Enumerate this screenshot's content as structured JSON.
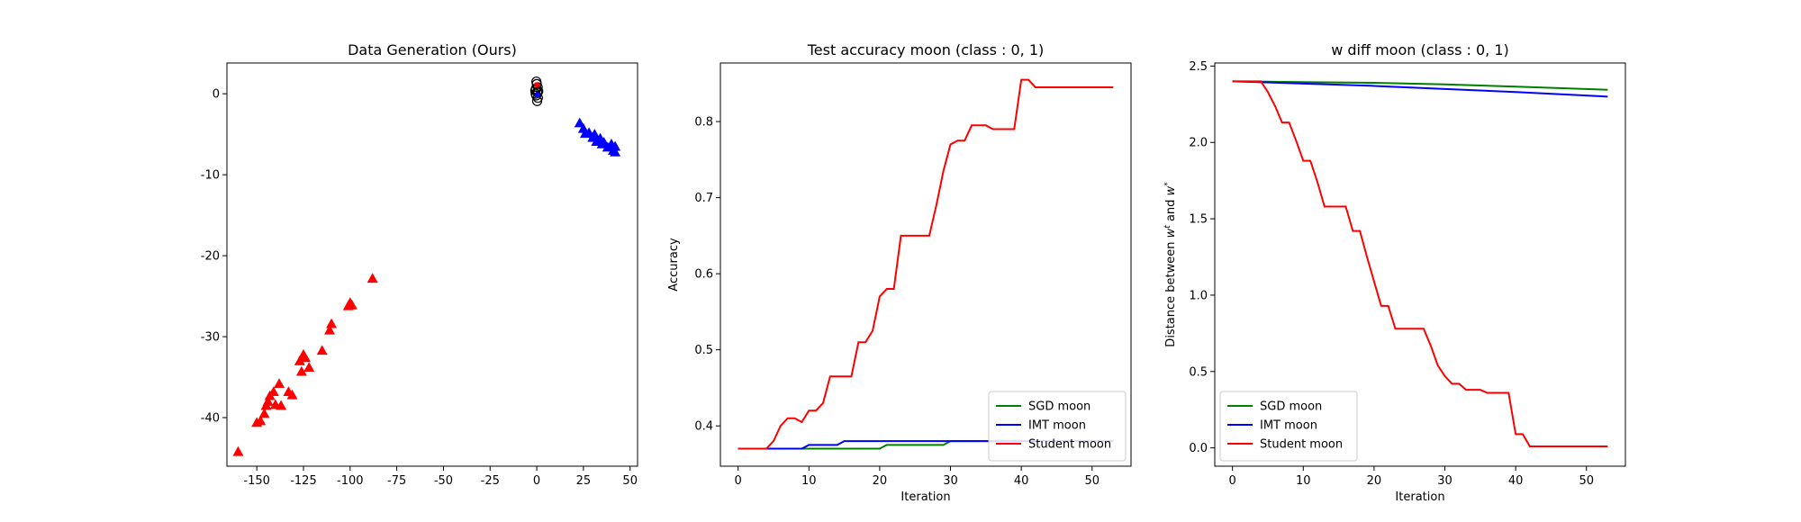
{
  "chart_data": [
    {
      "type": "scatter",
      "title": "Data Generation (Ours)",
      "xlabel": "",
      "ylabel": "",
      "xlim": [
        -166,
        54
      ],
      "ylim": [
        -46,
        3.8
      ],
      "xticks": [
        -150,
        -125,
        -100,
        -75,
        -50,
        -25,
        0,
        25,
        50
      ],
      "yticks": [
        0,
        -10,
        -20,
        -30,
        -40
      ],
      "series": [
        {
          "marker": "triangle",
          "color": "#ff0000",
          "points": [
            [
              -160,
              -44.2
            ],
            [
              -150,
              -40.6
            ],
            [
              -148,
              -40.4
            ],
            [
              -146,
              -39.5
            ],
            [
              -145,
              -38.5
            ],
            [
              -144,
              -38.0
            ],
            [
              -143,
              -37.3
            ],
            [
              -141,
              -36.8
            ],
            [
              -140,
              -38.4
            ],
            [
              -138,
              -35.8
            ],
            [
              -137,
              -38.5
            ],
            [
              -133,
              -36.8
            ],
            [
              -131,
              -37.2
            ],
            [
              -127,
              -33.0
            ],
            [
              -126,
              -34.3
            ],
            [
              -125,
              -32.2
            ],
            [
              -124,
              -32.6
            ],
            [
              -122,
              -33.8
            ],
            [
              -115,
              -31.7
            ],
            [
              -111,
              -29.2
            ],
            [
              -110,
              -28.4
            ],
            [
              -101,
              -26.2
            ],
            [
              -100,
              -25.8
            ],
            [
              -99,
              -26.1
            ],
            [
              -88,
              -22.8
            ]
          ]
        },
        {
          "marker": "triangle",
          "color": "#0000ff",
          "points": [
            [
              23,
              -3.6
            ],
            [
              25,
              -4.3
            ],
            [
              26,
              -4.9
            ],
            [
              28,
              -4.8
            ],
            [
              30,
              -5.4
            ],
            [
              31,
              -5.0
            ],
            [
              32,
              -5.9
            ],
            [
              34,
              -5.5
            ],
            [
              35,
              -6.2
            ],
            [
              36,
              -6.0
            ],
            [
              38,
              -6.6
            ],
            [
              40,
              -6.2
            ],
            [
              41,
              -7.0
            ],
            [
              42,
              -6.5
            ],
            [
              42,
              -7.2
            ]
          ]
        },
        {
          "marker": "circle-cluster",
          "color": "#000000",
          "points": [
            [
              0,
              1.2
            ],
            [
              0.5,
              0.8
            ],
            [
              -0.5,
              0.6
            ],
            [
              0.3,
              0.2
            ],
            [
              -0.3,
              -0.2
            ],
            [
              0.6,
              -0.5
            ],
            [
              -0.6,
              0.0
            ],
            [
              0.2,
              -0.9
            ],
            [
              -0.2,
              1.5
            ],
            [
              0.8,
              0.3
            ],
            [
              -0.8,
              0.4
            ]
          ]
        },
        {
          "marker": "dot",
          "color": "#ff0000",
          "points": [
            [
              0,
              1.1
            ]
          ]
        },
        {
          "marker": "dot",
          "color": "#0000ff",
          "points": [
            [
              0.3,
              -0.1
            ]
          ]
        }
      ]
    },
    {
      "type": "line",
      "title": "Test accuracy moon (class : 0, 1)",
      "xlabel": "Iteration",
      "ylabel": "Accuracy",
      "xlim": [
        -2.5,
        55.5
      ],
      "ylim": [
        0.347,
        0.877
      ],
      "xticks": [
        0,
        10,
        20,
        30,
        40,
        50
      ],
      "yticks": [
        0.4,
        0.5,
        0.6,
        0.7,
        0.8
      ],
      "legend": "lower-right",
      "series": [
        {
          "name": "SGD moon",
          "color": "#008000",
          "x": [
            0,
            5,
            9,
            10,
            20,
            21,
            29,
            30,
            53
          ],
          "y": [
            0.37,
            0.37,
            0.37,
            0.37,
            0.37,
            0.375,
            0.375,
            0.38,
            0.38
          ]
        },
        {
          "name": "IMT moon",
          "color": "#0000ff",
          "x": [
            0,
            4,
            9,
            10,
            14,
            15,
            53
          ],
          "y": [
            0.37,
            0.37,
            0.37,
            0.375,
            0.375,
            0.38,
            0.38
          ]
        },
        {
          "name": "Student moon",
          "color": "#ff0000",
          "x": [
            0,
            4,
            5,
            6,
            7,
            8,
            9,
            10,
            11,
            12,
            13,
            14,
            15,
            16,
            17,
            18,
            19,
            20,
            21,
            22,
            23,
            24,
            25,
            26,
            27,
            28,
            29,
            30,
            31,
            32,
            33,
            34,
            35,
            36,
            37,
            38,
            39,
            40,
            41,
            42,
            43,
            44,
            45,
            46,
            47,
            48,
            49,
            50,
            51,
            52,
            53
          ],
          "y": [
            0.37,
            0.37,
            0.38,
            0.4,
            0.41,
            0.41,
            0.405,
            0.42,
            0.42,
            0.43,
            0.465,
            0.465,
            0.465,
            0.465,
            0.51,
            0.51,
            0.525,
            0.57,
            0.58,
            0.58,
            0.65,
            0.65,
            0.65,
            0.65,
            0.65,
            0.69,
            0.735,
            0.77,
            0.775,
            0.775,
            0.795,
            0.795,
            0.795,
            0.79,
            0.79,
            0.79,
            0.79,
            0.855,
            0.855,
            0.845,
            0.845,
            0.845,
            0.845,
            0.845,
            0.845,
            0.845,
            0.845,
            0.845,
            0.845,
            0.845,
            0.845
          ]
        }
      ]
    },
    {
      "type": "line",
      "title": "w diff moon (class : 0, 1)",
      "xlabel": "Iteration",
      "ylabel": "Distance between w^t and w^*",
      "xlim": [
        -2.5,
        55.5
      ],
      "ylim": [
        -0.12,
        2.52
      ],
      "xticks": [
        0,
        10,
        20,
        30,
        40,
        50
      ],
      "yticks": [
        0.0,
        0.5,
        1.0,
        1.5,
        2.0,
        2.5
      ],
      "legend": "lower-left",
      "series": [
        {
          "name": "SGD moon",
          "color": "#008000",
          "x": [
            0,
            10,
            20,
            30,
            40,
            53
          ],
          "y": [
            2.4,
            2.395,
            2.39,
            2.38,
            2.365,
            2.345
          ]
        },
        {
          "name": "IMT moon",
          "color": "#0000ff",
          "x": [
            0,
            10,
            20,
            30,
            40,
            53
          ],
          "y": [
            2.4,
            2.385,
            2.37,
            2.35,
            2.33,
            2.3
          ]
        },
        {
          "name": "Student moon",
          "color": "#ff0000",
          "x": [
            0,
            4,
            5,
            6,
            7,
            8,
            9,
            10,
            11,
            12,
            13,
            14,
            15,
            16,
            17,
            18,
            19,
            20,
            21,
            22,
            23,
            24,
            25,
            26,
            27,
            28,
            29,
            30,
            31,
            32,
            33,
            34,
            35,
            36,
            37,
            38,
            39,
            40,
            41,
            42,
            43,
            44,
            45,
            46,
            47,
            48,
            49,
            50,
            51,
            52,
            53
          ],
          "y": [
            2.4,
            2.4,
            2.33,
            2.24,
            2.13,
            2.13,
            2.01,
            1.88,
            1.88,
            1.74,
            1.58,
            1.58,
            1.58,
            1.58,
            1.42,
            1.42,
            1.25,
            1.09,
            0.93,
            0.93,
            0.78,
            0.78,
            0.78,
            0.78,
            0.78,
            0.67,
            0.54,
            0.47,
            0.42,
            0.42,
            0.38,
            0.38,
            0.38,
            0.36,
            0.36,
            0.36,
            0.36,
            0.09,
            0.09,
            0.01,
            0.01,
            0.01,
            0.01,
            0.01,
            0.01,
            0.01,
            0.01,
            0.01,
            0.01,
            0.01,
            0.01
          ]
        }
      ]
    }
  ]
}
